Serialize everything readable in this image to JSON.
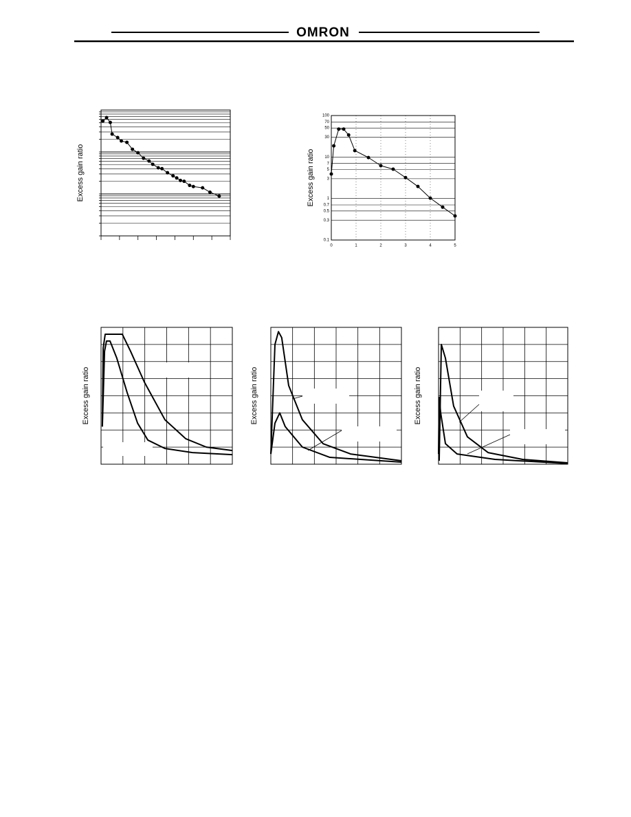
{
  "header": {
    "logo": "OMRON"
  },
  "chart_data": [
    {
      "type": "line",
      "ylabel": "Excess gain ratio",
      "yscale": "log",
      "grid": "y",
      "markers": true,
      "color": "#000000",
      "xlim": [
        0,
        7
      ],
      "ylim": [
        1,
        1000
      ],
      "x": [
        0.1,
        0.3,
        0.5,
        0.6,
        0.9,
        1.1,
        1.4,
        1.7,
        2.0,
        2.3,
        2.6,
        2.8,
        3.1,
        3.3,
        3.6,
        3.9,
        4.1,
        4.3,
        4.5,
        4.8,
        5.0,
        5.5,
        5.9,
        6.4
      ],
      "series": [
        {
          "values": [
            547,
            661,
            507,
            267,
            221,
            183,
            170,
            116,
            96,
            71,
            61,
            51,
            42,
            40,
            32,
            27,
            24,
            21,
            20,
            16,
            15,
            14,
            11,
            8.9
          ]
        }
      ]
    },
    {
      "type": "line",
      "ylabel": "Excess gain ratio",
      "yscale": "log",
      "grid": "both",
      "markers": true,
      "color": "#000000",
      "xlim": [
        0,
        5
      ],
      "ylim": [
        0.1,
        100
      ],
      "xticks": [
        0,
        1,
        2,
        3,
        4,
        5
      ],
      "yticks": [
        100,
        70,
        50,
        30,
        10,
        7,
        5,
        3,
        1,
        0.7,
        0.5,
        0.3,
        0.1
      ],
      "x": [
        0,
        0.1,
        0.3,
        0.5,
        0.7,
        0.95,
        1.5,
        2,
        2.5,
        3,
        3.5,
        4,
        4.5,
        5
      ],
      "series": [
        {
          "values": [
            3.9,
            18.6,
            47,
            47,
            34,
            14.3,
            9.7,
            6.2,
            5.1,
            3.2,
            1.95,
            1.02,
            0.62,
            0.38
          ]
        }
      ]
    },
    {
      "type": "line",
      "ylabel": "Excess gain ratio",
      "grid": "both",
      "markers": false,
      "color": "#000000",
      "xlim": [
        0,
        6
      ],
      "ylim": [
        0,
        8
      ],
      "series": [
        {
          "x": [
            0.06,
            0.1,
            0.19,
            0.97,
            1.35,
            1.98,
            2.92,
            3.87,
            4.81,
            6
          ],
          "values": [
            2.2,
            6.8,
            7.6,
            7.6,
            6.6,
            4.8,
            2.6,
            1.49,
            1.0,
            0.8
          ]
        },
        {
          "x": [
            0.06,
            0.16,
            0.25,
            0.41,
            0.72,
            1.19,
            1.67,
            2.14,
            2.92,
            4.18,
            6
          ],
          "values": [
            2.2,
            6.6,
            7.2,
            7.2,
            6.2,
            4.2,
            2.4,
            1.41,
            0.92,
            0.68,
            0.56
          ]
        }
      ]
    },
    {
      "type": "line",
      "ylabel": "Excess gain ratio",
      "grid": "both",
      "markers": false,
      "color": "#000000",
      "xlim": [
        0,
        6
      ],
      "ylim": [
        0,
        8
      ],
      "series": [
        {
          "x": [
            0,
            0.19,
            0.35,
            0.5,
            0.82,
            1.45,
            2.4,
            3.66,
            6
          ],
          "values": [
            0.6,
            7.0,
            7.75,
            7.4,
            4.6,
            2.6,
            1.2,
            0.6,
            0.2
          ]
        },
        {
          "x": [
            0,
            0.19,
            0.41,
            0.66,
            1.45,
            2.71,
            6
          ],
          "values": [
            0.6,
            2.4,
            3.0,
            2.2,
            1.0,
            0.4,
            0.12
          ]
        }
      ]
    },
    {
      "type": "line",
      "ylabel": "Excess gain ratio",
      "grid": "both",
      "markers": false,
      "color": "#000000",
      "xlim": [
        0,
        6
      ],
      "ylim": [
        0,
        8
      ],
      "series": [
        {
          "x": [
            0.03,
            0.13,
            0.32,
            0.7,
            1.34,
            2.3,
            3.9,
            6
          ],
          "values": [
            0.2,
            7.0,
            6.2,
            3.4,
            1.6,
            0.68,
            0.28,
            0.08
          ]
        },
        {
          "x": [
            0,
            0.03,
            0.1,
            0.32,
            0.86,
            2.62,
            6
          ],
          "values": [
            0.6,
            3.9,
            3.0,
            1.2,
            0.6,
            0.28,
            0.04
          ]
        }
      ]
    }
  ]
}
